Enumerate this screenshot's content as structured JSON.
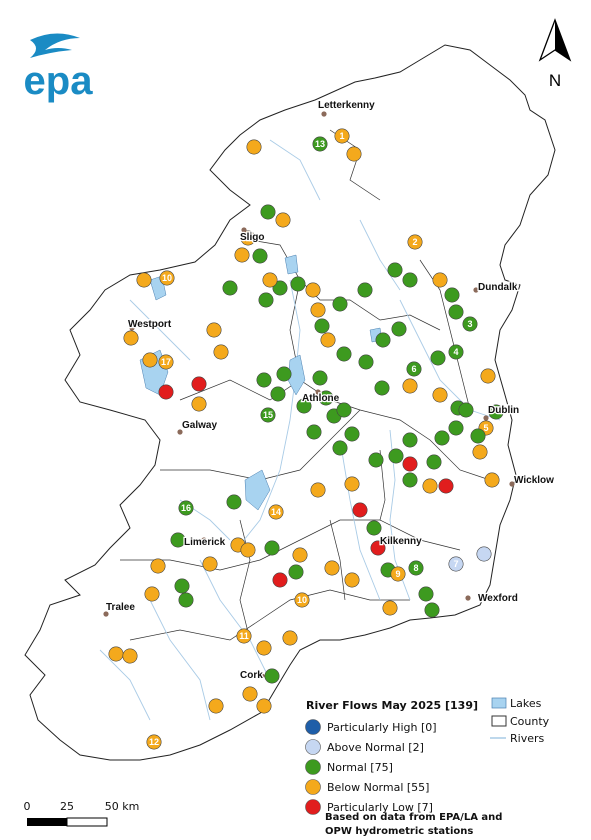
{
  "logo": {
    "text": "epa",
    "color": "#1a8bc4"
  },
  "north_arrow": {
    "label": "N"
  },
  "colors": {
    "particularly_high": "#1f5ea8",
    "above_normal": "#c6d7f2",
    "normal": "#3d9a1f",
    "below_normal": "#f4a91c",
    "particularly_low": "#e11d1d",
    "lake": "#a8d3f0",
    "river": "#a9cbe6"
  },
  "towns": [
    {
      "name": "Letterkenny"
    },
    {
      "name": "Sligo"
    },
    {
      "name": "Dundalk"
    },
    {
      "name": "Westport"
    },
    {
      "name": "Athlone"
    },
    {
      "name": "Dublin"
    },
    {
      "name": "Galway"
    },
    {
      "name": "Wicklow"
    },
    {
      "name": "Limerick"
    },
    {
      "name": "Kilkenny"
    },
    {
      "name": "Wexford"
    },
    {
      "name": "Tralee"
    },
    {
      "name": "Cork"
    }
  ],
  "legend": {
    "title": "River Flows May 2025 [139]",
    "classes": [
      {
        "key": "particularly_high",
        "label": "Particularly High [0]"
      },
      {
        "key": "above_normal",
        "label": "Above Normal [2]"
      },
      {
        "key": "normal",
        "label": "Normal [75]"
      },
      {
        "key": "below_normal",
        "label": "Below Normal [55]"
      },
      {
        "key": "particularly_low",
        "label": "Particularly Low [7]"
      }
    ],
    "layers": [
      {
        "key": "lakes",
        "label": "Lakes"
      },
      {
        "key": "county",
        "label": "County"
      },
      {
        "key": "rivers",
        "label": "Rivers"
      }
    ],
    "source": [
      "Based on data from EPA/LA and",
      "OPW hydrometric stations"
    ]
  },
  "scale_bar": {
    "labels": [
      "0",
      "25",
      "50 km"
    ]
  },
  "station_labels": [
    "1",
    "2",
    "3",
    "4",
    "5",
    "6",
    "7",
    "8",
    "9",
    "10",
    "11",
    "12",
    "13",
    "14",
    "15",
    "16",
    "17",
    "18"
  ]
}
